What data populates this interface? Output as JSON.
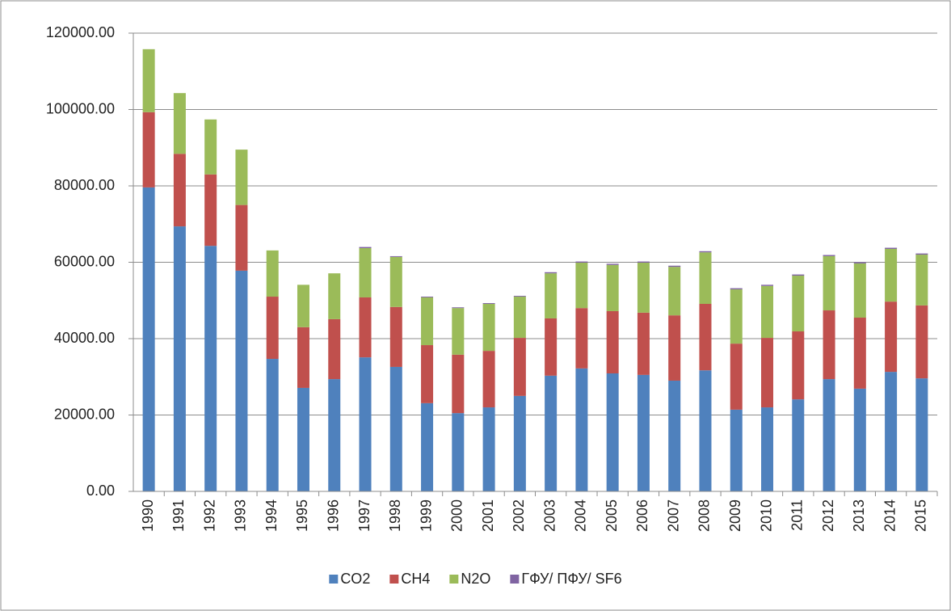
{
  "chart_data": {
    "type": "stacked_bar",
    "categories": [
      "1990",
      "1991",
      "1992",
      "1993",
      "1994",
      "1995",
      "1996",
      "1997",
      "1998",
      "1999",
      "2000",
      "2001",
      "2002",
      "2003",
      "2004",
      "2005",
      "2006",
      "2007",
      "2008",
      "2009",
      "2010",
      "2011",
      "2012",
      "2013",
      "2014",
      "2015"
    ],
    "series": [
      {
        "name": "CO2",
        "color": "#4f81bd",
        "values": [
          79600,
          69400,
          64300,
          57800,
          34700,
          27100,
          29400,
          35100,
          32600,
          23100,
          20500,
          22000,
          25000,
          30300,
          32200,
          30900,
          30500,
          29000,
          31700,
          21400,
          22000,
          24100,
          29400,
          26900,
          31300,
          29600
        ]
      },
      {
        "name": "CH4",
        "color": "#c0504d",
        "values": [
          19700,
          19000,
          18700,
          17200,
          16300,
          15900,
          15700,
          15700,
          15700,
          15200,
          15300,
          14800,
          15200,
          15000,
          15800,
          16300,
          16300,
          17100,
          17400,
          17300,
          18200,
          17800,
          18000,
          18600,
          18400,
          19100
        ]
      },
      {
        "name": "N2O",
        "color": "#9bbb59",
        "values": [
          16500,
          15900,
          14400,
          14500,
          12100,
          11100,
          12000,
          12900,
          13100,
          12500,
          12200,
          12300,
          10800,
          11800,
          11900,
          12100,
          13100,
          12700,
          13500,
          14200,
          13600,
          14600,
          14200,
          14200,
          13800,
          13300
        ]
      },
      {
        "name": "ГФУ/ ПФУ/ SF6",
        "color": "#8064a2",
        "values": [
          0,
          0,
          0,
          0,
          0,
          0,
          0,
          300,
          200,
          200,
          200,
          200,
          200,
          300,
          300,
          300,
          300,
          300,
          300,
          300,
          300,
          300,
          300,
          300,
          300,
          300
        ]
      }
    ],
    "ylim": [
      0,
      120000
    ],
    "yticks": [
      {
        "value": 0,
        "label": "0.00"
      },
      {
        "value": 20000,
        "label": "20000.00"
      },
      {
        "value": 40000,
        "label": "40000.00"
      },
      {
        "value": 60000,
        "label": "60000.00"
      },
      {
        "value": 80000,
        "label": "80000.00"
      },
      {
        "value": 100000,
        "label": "100000.00"
      },
      {
        "value": 120000,
        "label": "120000.00"
      }
    ],
    "grid": true,
    "legend": "bottom"
  }
}
